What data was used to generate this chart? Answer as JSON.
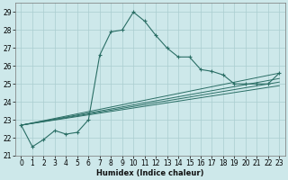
{
  "xlabel": "Humidex (Indice chaleur)",
  "xlim": [
    -0.5,
    23.5
  ],
  "ylim": [
    21.0,
    29.5
  ],
  "yticks": [
    21,
    22,
    23,
    24,
    25,
    26,
    27,
    28,
    29
  ],
  "xticks": [
    0,
    1,
    2,
    3,
    4,
    5,
    6,
    7,
    8,
    9,
    10,
    11,
    12,
    13,
    14,
    15,
    16,
    17,
    18,
    19,
    20,
    21,
    22,
    23
  ],
  "bg_color": "#cde8ea",
  "grid_color": "#aacdd0",
  "line_color": "#2a6e65",
  "curve_x": [
    0,
    1,
    2,
    3,
    4,
    5,
    6,
    7,
    8,
    9,
    10,
    11,
    12,
    13,
    14,
    15,
    16,
    17,
    18,
    19,
    20,
    21,
    22,
    23
  ],
  "curve_y": [
    22.7,
    21.5,
    21.9,
    22.4,
    22.2,
    22.3,
    23.0,
    26.6,
    27.9,
    28.0,
    29.0,
    28.5,
    27.7,
    27.0,
    26.5,
    26.5,
    25.8,
    25.7,
    25.5,
    25.0,
    25.0,
    25.0,
    25.0,
    25.6
  ],
  "straight_lines": [
    {
      "x": [
        0,
        23
      ],
      "y": [
        22.7,
        24.9
      ]
    },
    {
      "x": [
        0,
        23
      ],
      "y": [
        22.7,
        25.1
      ]
    },
    {
      "x": [
        0,
        23
      ],
      "y": [
        22.7,
        25.3
      ]
    },
    {
      "x": [
        0,
        23
      ],
      "y": [
        22.7,
        25.6
      ]
    }
  ],
  "xlabel_fontsize": 6.0,
  "tick_fontsize": 5.5
}
